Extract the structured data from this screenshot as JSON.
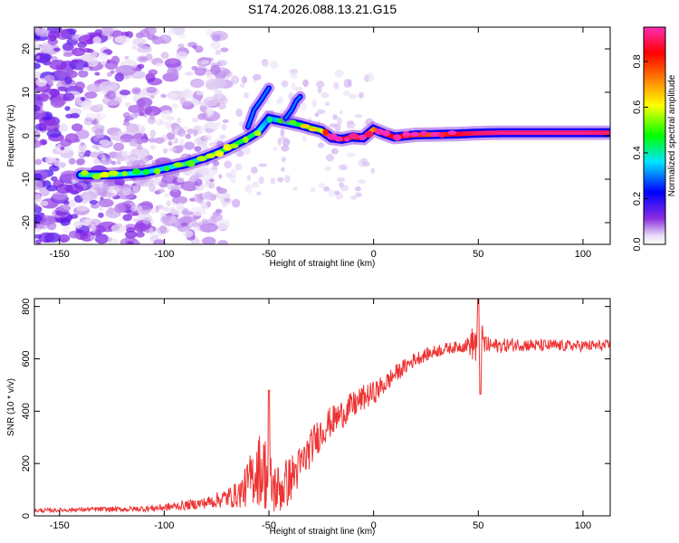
{
  "figure_title": "S174.2026.088.13.21.G15",
  "chart_data": [
    {
      "type": "heatmap",
      "title": "S174.2026.088.13.21.G15",
      "xlabel": "Height of straight line (km)",
      "ylabel": "Frequency (Hz)",
      "xlim": [
        -162,
        113
      ],
      "ylim": [
        -25,
        25
      ],
      "xticks": [
        -150,
        -100,
        -50,
        0,
        50,
        100
      ],
      "yticks": [
        -20,
        -10,
        0,
        10,
        20
      ],
      "xtick_labels": [
        "-150",
        "-100",
        "-50",
        "0",
        "50",
        "100"
      ],
      "ytick_labels": [
        "-20",
        "-10",
        "0",
        "10",
        "20"
      ],
      "colorbar": {
        "label": "Normalized spectral amplitude",
        "range": [
          0,
          0.95
        ],
        "ticks": [
          0.0,
          0.2,
          0.4,
          0.6,
          0.8
        ],
        "tick_labels": [
          "0.0",
          "0.2",
          "0.4",
          "0.6",
          "0.8"
        ],
        "colors": [
          "#e8dcf5",
          "#8a2be2",
          "#0000ff",
          "#00e5ff",
          "#00ff00",
          "#ffff00",
          "#ff8000",
          "#ff0000",
          "#ff2db4"
        ]
      },
      "ridge": {
        "x": [
          -140,
          -125,
          -110,
          -100,
          -90,
          -80,
          -70,
          -60,
          -55,
          -50,
          -45,
          -40,
          -35,
          -30,
          -25,
          -20,
          -15,
          -10,
          -5,
          0,
          5,
          10,
          20,
          30,
          40,
          50,
          60,
          80,
          100,
          112
        ],
        "y": [
          -9,
          -9,
          -8.5,
          -7.5,
          -6.5,
          -5,
          -3,
          -0.5,
          1,
          4,
          3.5,
          3,
          2.5,
          1.8,
          1.2,
          -0.5,
          -0.8,
          -0.3,
          -0.5,
          1.5,
          0.5,
          -0.3,
          0.2,
          0.3,
          0.4,
          0.6,
          0.7,
          0.7,
          0.7,
          0.7
        ],
        "amplitude": [
          0.4,
          0.4,
          0.35,
          0.35,
          0.4,
          0.4,
          0.45,
          0.45,
          0.4,
          0.3,
          0.35,
          0.4,
          0.45,
          0.5,
          0.55,
          0.85,
          0.85,
          0.8,
          0.8,
          0.7,
          0.85,
          0.85,
          0.8,
          0.75,
          0.85,
          0.9,
          0.92,
          0.92,
          0.92,
          0.9
        ]
      },
      "branches": [
        {
          "x": [
            -60,
            -57,
            -54,
            -52,
            -50
          ],
          "y": [
            2,
            6,
            8,
            9.5,
            11
          ],
          "amplitude": 0.3
        },
        {
          "x": [
            -42,
            -39,
            -37,
            -35
          ],
          "y": [
            4,
            6,
            8,
            9
          ],
          "amplitude": 0.3
        }
      ],
      "noise_region_x": [
        -162,
        -70
      ]
    },
    {
      "type": "line",
      "xlabel": "Height of straight line (km)",
      "ylabel": "SNR (10 * v/v)",
      "xlim": [
        -162,
        113
      ],
      "ylim": [
        0,
        830
      ],
      "xticks": [
        -150,
        -100,
        -50,
        0,
        50,
        100
      ],
      "yticks": [
        0,
        200,
        400,
        600,
        800
      ],
      "xtick_labels": [
        "-150",
        "-100",
        "-50",
        "0",
        "50",
        "100"
      ],
      "ytick_labels": [
        "0",
        "200",
        "400",
        "600",
        "800"
      ],
      "series": [
        {
          "name": "SNR",
          "color": "#ee3333",
          "x": [
            -162,
            -150,
            -140,
            -130,
            -120,
            -110,
            -100,
            -90,
            -80,
            -75,
            -70,
            -65,
            -62,
            -58,
            -55,
            -52,
            -50,
            -48,
            -45,
            -42,
            -40,
            -38,
            -35,
            -32,
            -30,
            -28,
            -25,
            -22,
            -20,
            -15,
            -10,
            -5,
            0,
            5,
            10,
            15,
            20,
            25,
            30,
            35,
            40,
            45,
            48,
            50,
            52,
            55,
            60,
            70,
            80,
            90,
            100,
            113
          ],
          "y": [
            20,
            22,
            24,
            25,
            25,
            27,
            32,
            40,
            50,
            60,
            70,
            80,
            100,
            150,
            180,
            170,
            130,
            110,
            100,
            120,
            140,
            160,
            190,
            230,
            260,
            290,
            320,
            350,
            360,
            390,
            420,
            450,
            470,
            500,
            540,
            570,
            600,
            615,
            630,
            640,
            645,
            655,
            660,
            650,
            660,
            650,
            650,
            655,
            650,
            650,
            650,
            650
          ],
          "amplitude": [
            8,
            8,
            8,
            10,
            10,
            12,
            15,
            18,
            22,
            30,
            40,
            50,
            70,
            110,
            140,
            150,
            140,
            110,
            100,
            100,
            90,
            90,
            80,
            75,
            70,
            70,
            65,
            60,
            60,
            55,
            55,
            50,
            45,
            40,
            35,
            30,
            28,
            25,
            25,
            22,
            22,
            30,
            80,
            120,
            70,
            30,
            28,
            25,
            25,
            22,
            22,
            22
          ],
          "spikes": [
            {
              "x": -50,
              "y": 480
            },
            {
              "x": 50,
              "y": 830
            },
            {
              "x": 51,
              "y": 465
            }
          ]
        }
      ]
    }
  ]
}
